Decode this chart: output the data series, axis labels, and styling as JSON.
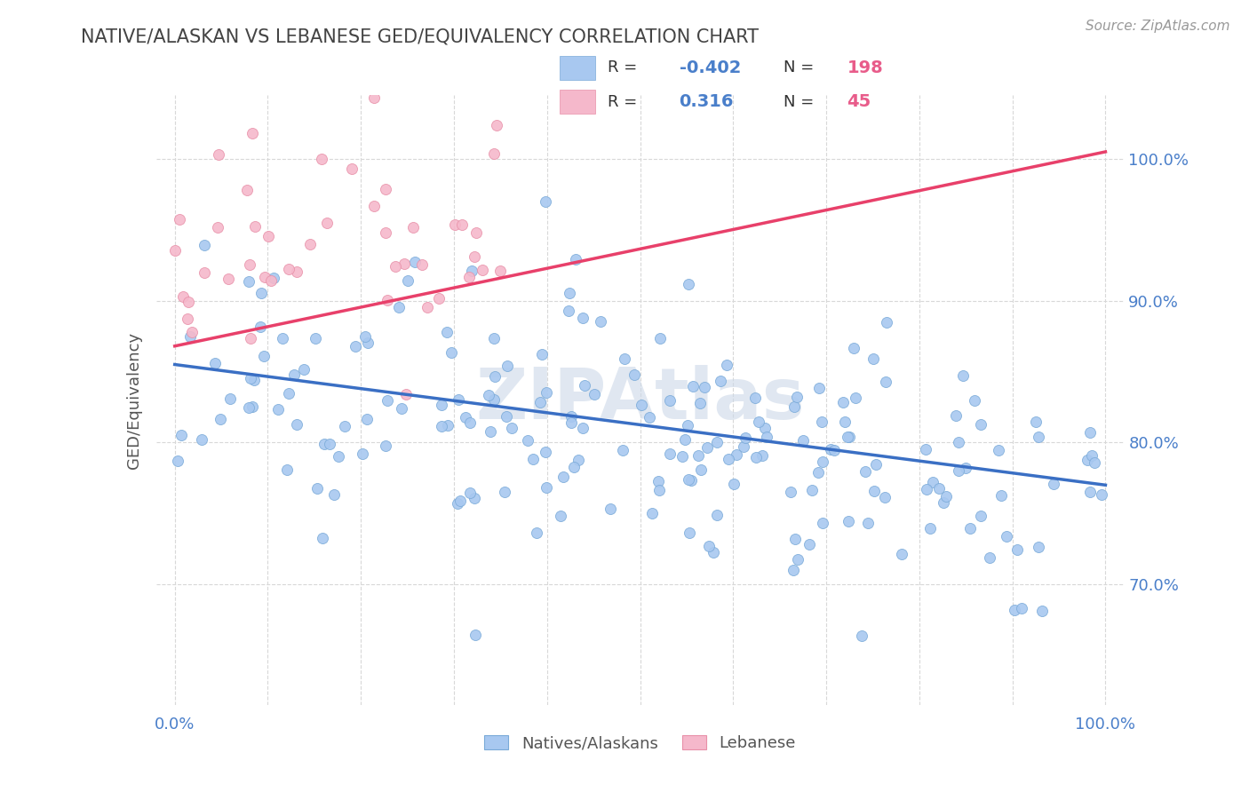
{
  "title": "NATIVE/ALASKAN VS LEBANESE GED/EQUIVALENCY CORRELATION CHART",
  "source": "Source: ZipAtlas.com",
  "ylabel": "GED/Equivalency",
  "ytick_values": [
    0.7,
    0.8,
    0.9,
    1.0
  ],
  "ytick_labels": [
    "70.0%",
    "80.0%",
    "90.0%",
    "100.0%"
  ],
  "xlim": [
    -0.02,
    1.02
  ],
  "ylim": [
    0.615,
    1.045
  ],
  "legend_r1": "-0.402",
  "legend_n1": "198",
  "legend_r2": "0.316",
  "legend_n2": "45",
  "blue_color": "#a8c8f0",
  "pink_color": "#f5b8cb",
  "blue_line_color": "#3a6fc4",
  "pink_line_color": "#e8406a",
  "blue_edge_color": "#7aaad8",
  "pink_edge_color": "#e890a8",
  "title_color": "#444444",
  "source_color": "#999999",
  "axis_color": "#555555",
  "grid_color": "#d8d8d8",
  "watermark_color": "#ccd8e8",
  "watermark_text": "ZIPAtlas",
  "legend_text_dark": "#333333",
  "legend_r_color": "#4a7fca",
  "legend_n_color": "#e85c8a"
}
